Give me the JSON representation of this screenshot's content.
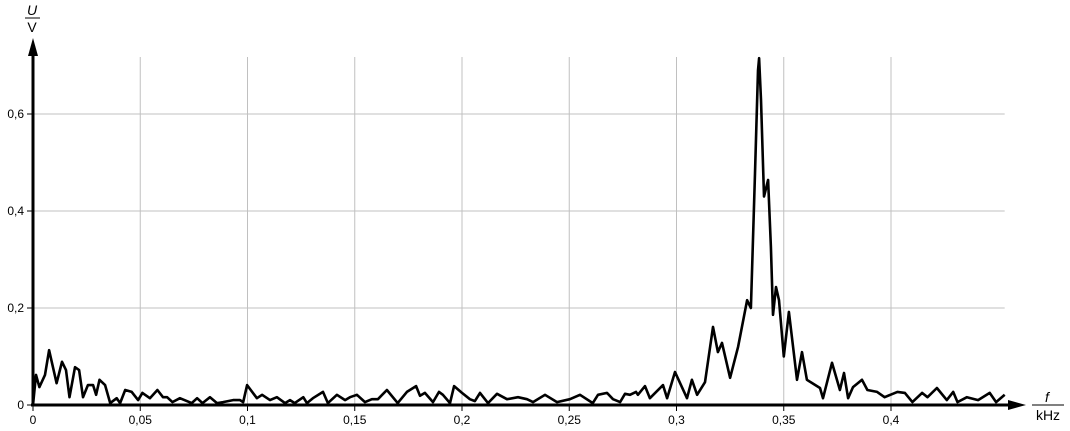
{
  "chart_data": {
    "type": "line",
    "title": "",
    "ylabel": {
      "symbol": "U",
      "unit": "V"
    },
    "xlabel": {
      "symbol": "f",
      "unit": "kHz"
    },
    "xlim": [
      0,
      0.453
    ],
    "ylim": [
      0,
      0.72
    ],
    "xticks": [
      0,
      0.05,
      0.1,
      0.15,
      0.2,
      0.25,
      0.3,
      0.35,
      0.4
    ],
    "xtick_labels": [
      "0",
      "0,05",
      "0,1",
      "0,15",
      "0,2",
      "0,25",
      "0,3",
      "0,35",
      "0,4"
    ],
    "yticks": [
      0,
      0.2,
      0.4,
      0.6
    ],
    "ytick_labels": [
      "0",
      "0,2",
      "0,4",
      "0,6"
    ],
    "grid": true,
    "colors": {
      "line": "#000000",
      "grid": "#c0c0c0",
      "axis": "#000000"
    },
    "series": [
      {
        "points": [
          [
            0,
            0
          ],
          [
            0.0014,
            0.062
          ],
          [
            0.003,
            0.037
          ],
          [
            0.0056,
            0.062
          ],
          [
            0.0075,
            0.113
          ],
          [
            0.011,
            0.045
          ],
          [
            0.0135,
            0.089
          ],
          [
            0.0154,
            0.072
          ],
          [
            0.017,
            0.016
          ],
          [
            0.0196,
            0.078
          ],
          [
            0.0215,
            0.072
          ],
          [
            0.0233,
            0.016
          ],
          [
            0.0256,
            0.041
          ],
          [
            0.028,
            0.041
          ],
          [
            0.0294,
            0.021
          ],
          [
            0.031,
            0.052
          ],
          [
            0.0336,
            0.041
          ],
          [
            0.036,
            0.004
          ],
          [
            0.039,
            0.014
          ],
          [
            0.0406,
            0.004
          ],
          [
            0.043,
            0.031
          ],
          [
            0.046,
            0.027
          ],
          [
            0.049,
            0.01
          ],
          [
            0.051,
            0.025
          ],
          [
            0.0545,
            0.014
          ],
          [
            0.058,
            0.031
          ],
          [
            0.0606,
            0.016
          ],
          [
            0.0625,
            0.016
          ],
          [
            0.065,
            0.006
          ],
          [
            0.0685,
            0.014
          ],
          [
            0.074,
            0.004
          ],
          [
            0.0765,
            0.014
          ],
          [
            0.079,
            0.004
          ],
          [
            0.0825,
            0.016
          ],
          [
            0.0858,
            0.004
          ],
          [
            0.0886,
            0.006
          ],
          [
            0.0933,
            0.01
          ],
          [
            0.0965,
            0.01
          ],
          [
            0.098,
            0.006
          ],
          [
            0.0998,
            0.041
          ],
          [
            0.1044,
            0.014
          ],
          [
            0.1068,
            0.021
          ],
          [
            0.1105,
            0.01
          ],
          [
            0.1137,
            0.016
          ],
          [
            0.1175,
            0.004
          ],
          [
            0.1198,
            0.01
          ],
          [
            0.122,
            0.004
          ],
          [
            0.126,
            0.016
          ],
          [
            0.1277,
            0.004
          ],
          [
            0.1305,
            0.014
          ],
          [
            0.1352,
            0.027
          ],
          [
            0.1375,
            0.004
          ],
          [
            0.1417,
            0.021
          ],
          [
            0.1455,
            0.01
          ],
          [
            0.1478,
            0.016
          ],
          [
            0.151,
            0.021
          ],
          [
            0.1548,
            0.006
          ],
          [
            0.158,
            0.012
          ],
          [
            0.1608,
            0.012
          ],
          [
            0.165,
            0.031
          ],
          [
            0.17,
            0.004
          ],
          [
            0.1743,
            0.027
          ],
          [
            0.1786,
            0.039
          ],
          [
            0.1804,
            0.019
          ],
          [
            0.1827,
            0.025
          ],
          [
            0.1865,
            0.006
          ],
          [
            0.1893,
            0.027
          ],
          [
            0.1911,
            0.021
          ],
          [
            0.1944,
            0.004
          ],
          [
            0.1963,
            0.039
          ],
          [
            0.2,
            0.025
          ],
          [
            0.2037,
            0.012
          ],
          [
            0.206,
            0.008
          ],
          [
            0.2084,
            0.025
          ],
          [
            0.2121,
            0.004
          ],
          [
            0.2163,
            0.023
          ],
          [
            0.221,
            0.012
          ],
          [
            0.2261,
            0.016
          ],
          [
            0.2303,
            0.012
          ],
          [
            0.2331,
            0.006
          ],
          [
            0.2387,
            0.021
          ],
          [
            0.2443,
            0.006
          ],
          [
            0.2503,
            0.012
          ],
          [
            0.255,
            0.021
          ],
          [
            0.261,
            0.004
          ],
          [
            0.2634,
            0.021
          ],
          [
            0.2676,
            0.025
          ],
          [
            0.2704,
            0.012
          ],
          [
            0.2737,
            0.006
          ],
          [
            0.276,
            0.023
          ],
          [
            0.2783,
            0.021
          ],
          [
            0.2811,
            0.027
          ],
          [
            0.282,
            0.021
          ],
          [
            0.2853,
            0.039
          ],
          [
            0.2876,
            0.014
          ],
          [
            0.2937,
            0.041
          ],
          [
            0.2956,
            0.014
          ],
          [
            0.2993,
            0.068
          ],
          [
            0.3049,
            0.014
          ],
          [
            0.3072,
            0.052
          ],
          [
            0.3096,
            0.021
          ],
          [
            0.3133,
            0.047
          ],
          [
            0.317,
            0.161
          ],
          [
            0.3193,
            0.109
          ],
          [
            0.3212,
            0.128
          ],
          [
            0.325,
            0.056
          ],
          [
            0.3287,
            0.12
          ],
          [
            0.3329,
            0.216
          ],
          [
            0.3347,
            0.2
          ],
          [
            0.3366,
            0.478
          ],
          [
            0.338,
            0.69
          ],
          [
            0.3385,
            0.715
          ],
          [
            0.3394,
            0.629
          ],
          [
            0.3408,
            0.43
          ],
          [
            0.3427,
            0.464
          ],
          [
            0.344,
            0.326
          ],
          [
            0.345,
            0.186
          ],
          [
            0.3464,
            0.243
          ],
          [
            0.3478,
            0.216
          ],
          [
            0.35,
            0.1
          ],
          [
            0.3524,
            0.192
          ],
          [
            0.3562,
            0.052
          ],
          [
            0.3585,
            0.109
          ],
          [
            0.3608,
            0.052
          ],
          [
            0.3669,
            0.035
          ],
          [
            0.3683,
            0.014
          ],
          [
            0.3725,
            0.087
          ],
          [
            0.3762,
            0.031
          ],
          [
            0.3781,
            0.066
          ],
          [
            0.38,
            0.014
          ],
          [
            0.3823,
            0.037
          ],
          [
            0.3865,
            0.052
          ],
          [
            0.389,
            0.031
          ],
          [
            0.3935,
            0.027
          ],
          [
            0.397,
            0.016
          ],
          [
            0.403,
            0.027
          ],
          [
            0.4065,
            0.025
          ],
          [
            0.41,
            0.006
          ],
          [
            0.4145,
            0.025
          ],
          [
            0.417,
            0.016
          ],
          [
            0.4214,
            0.035
          ],
          [
            0.426,
            0.01
          ],
          [
            0.429,
            0.027
          ],
          [
            0.431,
            0.006
          ],
          [
            0.4354,
            0.016
          ],
          [
            0.4406,
            0.01
          ],
          [
            0.446,
            0.025
          ],
          [
            0.449,
            0.006
          ],
          [
            0.453,
            0.021
          ]
        ]
      }
    ]
  }
}
